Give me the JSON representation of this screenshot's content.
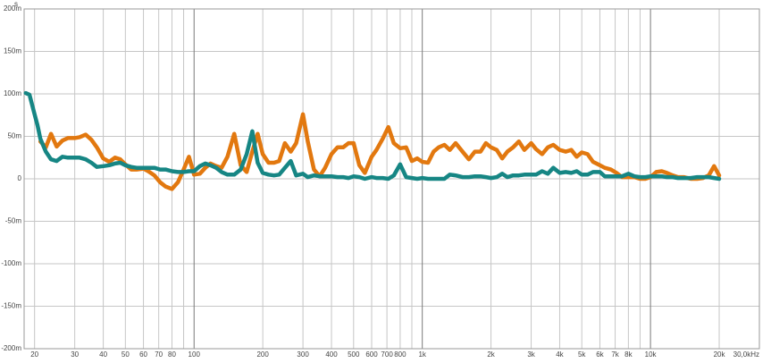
{
  "chart_data": {
    "type": "line",
    "y_unit": "s",
    "xscale": "log",
    "grid": true,
    "xlim": [
      18,
      30000
    ],
    "ylim": [
      -200,
      200
    ],
    "xticks": [
      20,
      30,
      40,
      50,
      60,
      70,
      80,
      {
        "value": 90,
        "label": null
      },
      100,
      200,
      300,
      400,
      500,
      600,
      700,
      800,
      {
        "value": 900,
        "label": null
      },
      {
        "value": 1000,
        "label": "1k"
      },
      {
        "value": 2000,
        "label": "2k"
      },
      {
        "value": 3000,
        "label": "3k"
      },
      {
        "value": 4000,
        "label": "4k"
      },
      {
        "value": 5000,
        "label": "5k"
      },
      {
        "value": 6000,
        "label": "6k"
      },
      {
        "value": 7000,
        "label": "7k"
      },
      {
        "value": 8000,
        "label": "8k"
      },
      {
        "value": 9000,
        "label": null
      },
      {
        "value": 10000,
        "label": "10k"
      },
      {
        "value": 20000,
        "label": "20k"
      },
      {
        "value": 30000,
        "label": "30,0kHz"
      }
    ],
    "yticks": [
      {
        "value": 200,
        "label": "200m"
      },
      {
        "value": 150,
        "label": "150m"
      },
      {
        "value": 100,
        "label": "100m"
      },
      {
        "value": 50,
        "label": "50m"
      },
      0,
      {
        "value": -50,
        "label": "-50m"
      },
      {
        "value": -100,
        "label": "-100m"
      },
      {
        "value": -150,
        "label": "-150m"
      },
      {
        "value": -200,
        "label": "-200m"
      }
    ],
    "x": [
      18.3,
      19,
      20,
      20.6,
      21.2,
      22.4,
      23.6,
      25,
      26.5,
      28,
      30,
      31.5,
      33.5,
      35.5,
      37.5,
      40,
      42.5,
      45,
      47.5,
      50,
      53,
      56,
      60,
      63,
      67,
      71,
      75,
      80,
      85,
      90,
      95,
      100,
      106,
      112,
      118,
      125,
      132,
      140,
      150,
      160,
      170,
      180,
      190,
      200,
      212,
      224,
      236,
      250,
      265,
      280,
      300,
      315,
      335,
      355,
      375,
      400,
      425,
      450,
      475,
      500,
      530,
      560,
      600,
      630,
      670,
      710,
      750,
      800,
      850,
      900,
      950,
      1000,
      1060,
      1120,
      1180,
      1250,
      1320,
      1400,
      1500,
      1600,
      1700,
      1800,
      1900,
      2000,
      2120,
      2240,
      2360,
      2500,
      2650,
      2800,
      3000,
      3150,
      3350,
      3550,
      3750,
      4000,
      4250,
      4500,
      4750,
      5000,
      5300,
      5600,
      6000,
      6300,
      6700,
      7100,
      7500,
      8000,
      8500,
      9000,
      9500,
      10000,
      10600,
      11200,
      11800,
      12500,
      13200,
      14000,
      15000,
      16000,
      17000,
      18000,
      19000,
      20000
    ],
    "series": [
      {
        "color": "#e2780f",
        "values": [
          null,
          null,
          19,
          null,
          44,
          37,
          53,
          38,
          45,
          48,
          48,
          49,
          52,
          46,
          37,
          24,
          20,
          25,
          23,
          17,
          11,
          11,
          12,
          9,
          4,
          -4,
          -9,
          -12,
          -4,
          11,
          26,
          5,
          6,
          13,
          18,
          15,
          13,
          26,
          53,
          16,
          8,
          32,
          53,
          29,
          19,
          19,
          21,
          42,
          32,
          42,
          76,
          44,
          11,
          3,
          13,
          29,
          37,
          37,
          42,
          42,
          16,
          7,
          26,
          34,
          47,
          61,
          42,
          36,
          37,
          21,
          24,
          20,
          19,
          32,
          37,
          40,
          34,
          42,
          32,
          23,
          32,
          32,
          42,
          37,
          34,
          24,
          32,
          37,
          44,
          34,
          42,
          35,
          29,
          37,
          40,
          34,
          32,
          34,
          26,
          31,
          29,
          20,
          16,
          13,
          11,
          7,
          2,
          2,
          2,
          0,
          0,
          2,
          8,
          9,
          7,
          4,
          2,
          2,
          0,
          0,
          1,
          4,
          15,
          4
        ]
      },
      {
        "color": "#168684",
        "values": [
          101,
          99,
          76,
          63,
          47,
          32,
          23,
          21,
          26,
          25,
          25,
          25,
          23,
          19,
          14,
          15,
          16,
          18,
          19,
          16,
          14,
          13,
          13,
          13,
          13,
          11,
          11,
          9,
          8,
          8,
          9,
          9,
          15,
          18,
          16,
          13,
          8,
          5,
          5,
          11,
          29,
          56,
          19,
          7,
          5,
          4,
          5,
          13,
          21,
          4,
          6,
          2,
          4,
          3,
          3,
          3,
          2,
          2,
          1,
          3,
          2,
          0,
          2,
          1,
          1,
          0,
          4,
          17,
          2,
          1,
          0,
          1,
          0,
          0,
          0,
          0,
          5,
          4,
          2,
          2,
          3,
          3,
          2,
          1,
          2,
          6,
          2,
          4,
          4,
          5,
          5,
          5,
          9,
          6,
          13,
          7,
          8,
          7,
          9,
          5,
          5,
          8,
          8,
          3,
          3,
          3,
          3,
          6,
          3,
          2,
          2,
          3,
          3,
          3,
          2,
          2,
          1,
          1,
          1,
          2,
          2,
          2,
          1,
          0
        ]
      }
    ]
  }
}
